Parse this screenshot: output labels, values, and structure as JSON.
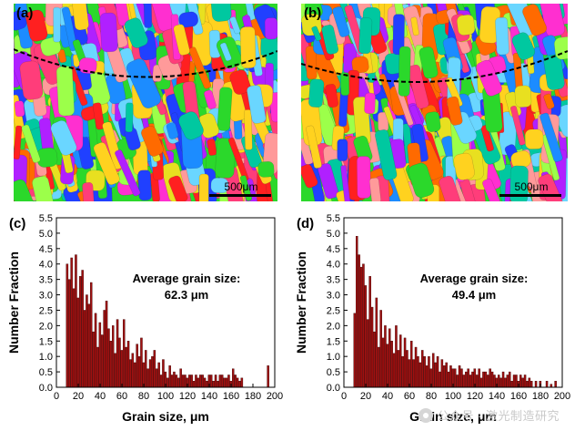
{
  "panels": {
    "a": {
      "label": "(a)",
      "scalebar": "500μm"
    },
    "b": {
      "label": "(b)",
      "scalebar": "500μm"
    },
    "c": {
      "label": "(c)"
    },
    "d": {
      "label": "(d)"
    }
  },
  "watermark": {
    "text": "公众号 · 激光制造研究"
  },
  "colors": {
    "bar_fill": "#a01010",
    "bar_edge": "#3a0000",
    "grain_palette": [
      "#ff2020",
      "#ff6a00",
      "#ffd21f",
      "#2bd82b",
      "#00c8a0",
      "#1c8cff",
      "#2040ff",
      "#b020ff",
      "#ff2fd0",
      "#ff3d7a",
      "#6ad6ff",
      "#9cff4a",
      "#e8e020",
      "#ff9a9a"
    ]
  },
  "chart_data": [
    {
      "type": "bar",
      "panel": "c",
      "annotation_line1": "Average grain size:",
      "annotation_line2": "62.3 μm",
      "xlabel": "Grain size, μm",
      "ylabel": "Number Fraction",
      "xlim": [
        0,
        200
      ],
      "ylim": [
        0,
        5.5
      ],
      "xticks": [
        "0",
        "20",
        "40",
        "60",
        "80",
        "100",
        "120",
        "140",
        "160",
        "180",
        "200"
      ],
      "yticks": [
        "0.0",
        "0.5",
        "1.0",
        "1.5",
        "2.0",
        "2.5",
        "3.0",
        "3.5",
        "4.0",
        "4.5",
        "5.0",
        "5.5"
      ],
      "bin_width": 2,
      "x": [
        10,
        12,
        14,
        16,
        18,
        20,
        22,
        24,
        26,
        28,
        30,
        32,
        34,
        36,
        38,
        40,
        42,
        44,
        46,
        48,
        50,
        52,
        54,
        56,
        58,
        60,
        62,
        64,
        66,
        68,
        70,
        72,
        74,
        76,
        78,
        80,
        82,
        84,
        86,
        88,
        90,
        92,
        94,
        96,
        98,
        100,
        102,
        104,
        106,
        108,
        110,
        112,
        114,
        116,
        118,
        120,
        122,
        124,
        126,
        128,
        130,
        132,
        134,
        136,
        138,
        140,
        142,
        144,
        146,
        148,
        150,
        152,
        154,
        156,
        158,
        160,
        162,
        164,
        166,
        168,
        170,
        194
      ],
      "values": [
        4.0,
        3.5,
        4.2,
        3.2,
        4.3,
        2.9,
        3.6,
        3.8,
        2.5,
        3.0,
        2.7,
        3.4,
        1.8,
        2.4,
        1.3,
        2.1,
        1.7,
        2.5,
        2.8,
        1.9,
        1.5,
        2.0,
        1.1,
        2.2,
        1.6,
        1.2,
        2.2,
        1.3,
        1.5,
        0.9,
        1.1,
        0.8,
        1.4,
        1.0,
        1.6,
        0.8,
        1.2,
        0.6,
        0.9,
        1.0,
        1.2,
        0.6,
        0.8,
        0.4,
        0.9,
        0.5,
        0.3,
        0.7,
        0.4,
        0.5,
        0.4,
        0.3,
        0.6,
        0.4,
        0.4,
        0.3,
        0.4,
        0.4,
        0.2,
        0.4,
        0.3,
        0.4,
        0.4,
        0.3,
        0.2,
        0.4,
        0.4,
        0.2,
        0.4,
        0.2,
        0.4,
        0.4,
        0.3,
        0.3,
        0.4,
        0.2,
        0.6,
        0.4,
        0.3,
        0.2,
        0.3,
        0.7
      ]
    },
    {
      "type": "bar",
      "panel": "d",
      "annotation_line1": "Average grain size:",
      "annotation_line2": "49.4 μm",
      "xlabel": "Grain size, μm",
      "ylabel": "Number Fraction",
      "xlim": [
        0,
        200
      ],
      "ylim": [
        0,
        5.5
      ],
      "xticks": [
        "0",
        "20",
        "40",
        "60",
        "80",
        "100",
        "120",
        "140",
        "160",
        "180",
        "200"
      ],
      "yticks": [
        "0.0",
        "0.5",
        "1.0",
        "1.5",
        "2.0",
        "2.5",
        "3.0",
        "3.5",
        "4.0",
        "4.5",
        "5.0",
        "5.5"
      ],
      "bin_width": 2,
      "x": [
        10,
        12,
        14,
        16,
        18,
        20,
        22,
        24,
        26,
        28,
        30,
        32,
        34,
        36,
        38,
        40,
        42,
        44,
        46,
        48,
        50,
        52,
        54,
        56,
        58,
        60,
        62,
        64,
        66,
        68,
        70,
        72,
        74,
        76,
        78,
        80,
        82,
        84,
        86,
        88,
        90,
        92,
        94,
        96,
        98,
        100,
        102,
        104,
        106,
        108,
        110,
        112,
        114,
        116,
        118,
        120,
        122,
        124,
        126,
        128,
        130,
        132,
        134,
        136,
        138,
        140,
        142,
        144,
        146,
        148,
        150,
        152,
        154,
        156,
        158,
        160,
        162,
        164,
        166,
        168,
        170,
        172,
        176,
        180,
        186,
        190,
        194
      ],
      "values": [
        2.4,
        4.9,
        4.3,
        3.9,
        4.0,
        3.3,
        2.2,
        3.6,
        2.6,
        1.8,
        2.9,
        1.3,
        2.5,
        1.6,
        2.0,
        1.4,
        1.9,
        1.5,
        1.1,
        2.0,
        1.2,
        1.7,
        1.0,
        1.6,
        1.2,
        0.9,
        1.5,
        0.9,
        1.3,
        1.0,
        0.8,
        1.2,
        1.0,
        0.7,
        1.0,
        0.6,
        1.1,
        0.8,
        1.0,
        0.5,
        0.9,
        0.7,
        0.8,
        0.5,
        0.7,
        0.6,
        0.6,
        0.4,
        0.7,
        0.6,
        0.4,
        0.5,
        0.6,
        0.4,
        0.5,
        0.6,
        0.4,
        0.6,
        0.3,
        0.5,
        0.5,
        0.4,
        0.6,
        0.5,
        0.4,
        0.3,
        0.4,
        0.3,
        0.5,
        0.3,
        0.4,
        0.5,
        0.2,
        0.4,
        0.4,
        0.2,
        0.4,
        0.3,
        0.4,
        0.2,
        0.3,
        0.2,
        0.2,
        0.2,
        0.2,
        0.1,
        0.2
      ]
    }
  ]
}
